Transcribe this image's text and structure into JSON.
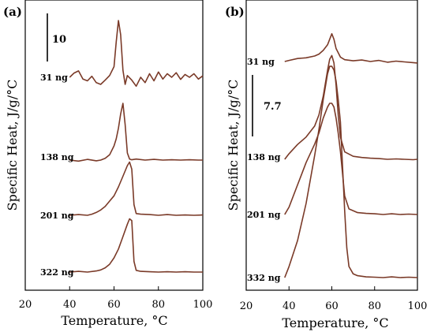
{
  "chart_data": [
    {
      "panel_label": "(a)",
      "type": "line",
      "xlabel": "Temperature, °C",
      "ylabel": "Specific Heat, J/g/°C",
      "xlim": [
        20,
        100
      ],
      "xticks": [
        "20",
        "40",
        "60",
        "80",
        "100"
      ],
      "scale_bar": "10",
      "series": [
        {
          "name": "31 ng",
          "x": [
            40,
            42,
            44,
            46,
            48,
            50,
            52,
            54,
            56,
            58,
            60,
            61,
            62,
            63,
            64,
            65,
            66,
            68,
            70,
            72,
            74,
            76,
            78,
            80,
            82,
            84,
            86,
            88,
            90,
            92,
            94,
            96,
            98,
            100
          ],
          "y": [
            0,
            1.2,
            1.8,
            -0.5,
            -1,
            0.3,
            -1.5,
            -2,
            -0.8,
            0.5,
            3,
            10,
            16,
            12,
            2,
            -2,
            0.5,
            -0.8,
            -2.5,
            0,
            -1.5,
            1,
            -1,
            1.5,
            -0.5,
            1,
            0,
            1.3,
            -0.6,
            0.8,
            0,
            1,
            -0.5,
            0.4
          ]
        },
        {
          "name": "138 ng",
          "x": [
            40,
            44,
            48,
            52,
            54,
            56,
            58,
            60,
            61,
            62,
            63,
            64,
            65,
            66,
            67,
            68,
            70,
            74,
            78,
            82,
            86,
            90,
            94,
            98,
            100
          ],
          "y": [
            0,
            -0.3,
            0.2,
            -0.2,
            0,
            0.5,
            1.5,
            4,
            6,
            9,
            13,
            16,
            10,
            2,
            0.3,
            0.1,
            0.3,
            0,
            0.2,
            0,
            0.1,
            0,
            0.1,
            0,
            0
          ]
        },
        {
          "name": "201 ng",
          "x": [
            40,
            44,
            48,
            50,
            52,
            54,
            56,
            58,
            60,
            62,
            64,
            66,
            67,
            68,
            69,
            70,
            72,
            76,
            80,
            84,
            88,
            92,
            96,
            100
          ],
          "y": [
            0,
            0.2,
            0,
            0.3,
            0.8,
            1.5,
            2.5,
            4,
            5.5,
            8,
            11,
            14,
            15,
            13,
            3,
            0.5,
            0.3,
            0.2,
            0,
            0.2,
            0,
            0.1,
            0,
            0.1
          ]
        },
        {
          "name": "322 ng",
          "x": [
            40,
            44,
            48,
            52,
            54,
            56,
            58,
            60,
            62,
            64,
            66,
            67,
            68,
            69,
            70,
            72,
            76,
            80,
            84,
            88,
            92,
            96,
            100
          ],
          "y": [
            0,
            0.2,
            0,
            0.3,
            0.6,
            1.2,
            2.2,
            4,
            6.5,
            10,
            13.5,
            15,
            14.5,
            3,
            0.5,
            0.2,
            0.1,
            0,
            0.1,
            0,
            0.1,
            0,
            0
          ]
        }
      ]
    },
    {
      "panel_label": "(b)",
      "type": "line",
      "xlabel": "Temperature, °C",
      "ylabel": "Specific Heat, J/g/°C",
      "xlim": [
        20,
        100
      ],
      "xticks": [
        "20",
        "40",
        "60",
        "80",
        "100"
      ],
      "scale_bar": "7.7",
      "series": [
        {
          "name": "31 ng",
          "x": [
            38,
            40,
            44,
            48,
            52,
            54,
            56,
            58,
            59,
            60,
            61,
            62,
            64,
            66,
            70,
            74,
            78,
            82,
            86,
            90,
            94,
            98,
            100
          ],
          "y": [
            0,
            0.3,
            0.8,
            1,
            1.5,
            2,
            3,
            4.5,
            6,
            7.5,
            6,
            3.5,
            1.2,
            0.5,
            0.2,
            0.4,
            0,
            0.3,
            -0.2,
            0.1,
            -0.1,
            -0.3,
            -0.4
          ]
        },
        {
          "name": "138 ng",
          "x": [
            38,
            40,
            44,
            48,
            52,
            54,
            56,
            58,
            59,
            60,
            61,
            62,
            63,
            64,
            66,
            70,
            74,
            78,
            82,
            86,
            90,
            94,
            98,
            100
          ],
          "y": [
            0,
            1.5,
            4,
            6,
            9,
            12,
            17,
            24,
            27,
            28,
            26,
            20,
            12,
            6,
            2,
            0.8,
            0.5,
            0.3,
            0.2,
            0,
            0.1,
            0,
            -0.1,
            0
          ]
        },
        {
          "name": "201 ng",
          "x": [
            38,
            40,
            44,
            48,
            52,
            54,
            56,
            58,
            59,
            60,
            61,
            62,
            63,
            64,
            65,
            66,
            68,
            72,
            76,
            80,
            84,
            88,
            92,
            96,
            100
          ],
          "y": [
            0,
            2,
            8,
            14,
            19,
            22,
            26,
            29,
            30,
            30,
            29,
            26,
            22,
            17,
            11,
            5,
            1.5,
            0.5,
            0.3,
            0.2,
            0,
            0.2,
            0,
            0.1,
            0
          ]
        },
        {
          "name": "332 ng",
          "x": [
            38,
            40,
            44,
            48,
            52,
            54,
            56,
            58,
            59,
            60,
            61,
            62,
            63,
            64,
            65,
            66,
            67,
            68,
            70,
            72,
            76,
            80,
            84,
            88,
            92,
            96,
            100
          ],
          "y": [
            0,
            3,
            10,
            20,
            33,
            40,
            48,
            55,
            57,
            57,
            56,
            53,
            48,
            42,
            30,
            18,
            8,
            3,
            1,
            0.5,
            0.2,
            0.1,
            0,
            0.2,
            0,
            0.1,
            0
          ]
        }
      ]
    }
  ]
}
